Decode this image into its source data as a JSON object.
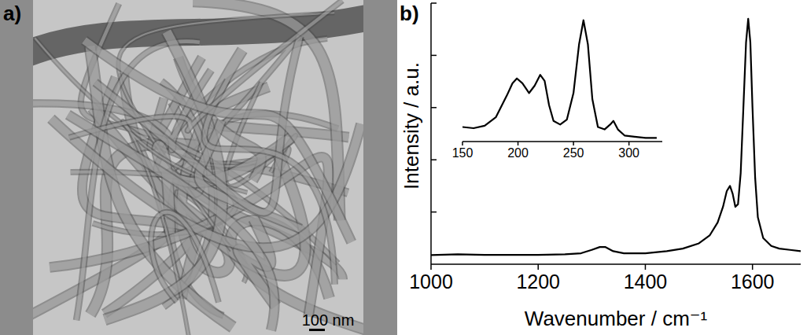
{
  "panels": {
    "a": "a)",
    "b": "b)"
  },
  "image": {
    "scale_bar": "100 nm"
  },
  "chart_data": [
    {
      "type": "line",
      "x_label": "Wavenumber / cm⁻¹",
      "y_label": "Intensity / a.u.",
      "x": [
        1000,
        1050,
        1100,
        1150,
        1200,
        1250,
        1280,
        1300,
        1315,
        1325,
        1340,
        1360,
        1400,
        1440,
        1470,
        1500,
        1520,
        1535,
        1545,
        1552,
        1558,
        1563,
        1568,
        1573,
        1578,
        1583,
        1588,
        1592,
        1596,
        1600,
        1605,
        1610,
        1620,
        1635,
        1650,
        1670,
        1690
      ],
      "values": [
        0.035,
        0.038,
        0.036,
        0.036,
        0.036,
        0.038,
        0.042,
        0.055,
        0.066,
        0.066,
        0.05,
        0.042,
        0.042,
        0.05,
        0.06,
        0.08,
        0.11,
        0.16,
        0.22,
        0.28,
        0.3,
        0.27,
        0.22,
        0.23,
        0.35,
        0.6,
        0.85,
        0.94,
        0.85,
        0.6,
        0.33,
        0.18,
        0.1,
        0.07,
        0.06,
        0.055,
        0.05
      ],
      "color": "#000000",
      "xlim": [
        1000,
        1690
      ],
      "xticks": [
        1000,
        1200,
        1400,
        1600
      ],
      "ylim": [
        0,
        1
      ],
      "yticks": [
        0.2,
        0.4,
        0.6,
        0.8,
        1
      ],
      "tick_labels": "x"
    },
    {
      "type": "line",
      "x": [
        150,
        160,
        170,
        180,
        190,
        195,
        199,
        204,
        210,
        215,
        220,
        224,
        228,
        232,
        238,
        244,
        250,
        255,
        259,
        263,
        267,
        272,
        278,
        283,
        286,
        290,
        296,
        305,
        315,
        325
      ],
      "values": [
        0.12,
        0.11,
        0.13,
        0.2,
        0.38,
        0.48,
        0.52,
        0.48,
        0.4,
        0.46,
        0.55,
        0.5,
        0.3,
        0.17,
        0.14,
        0.18,
        0.4,
        0.8,
        1.0,
        0.8,
        0.35,
        0.12,
        0.1,
        0.14,
        0.17,
        0.1,
        0.05,
        0.04,
        0.03,
        0.03
      ],
      "color": "#000000",
      "xlim": [
        150,
        330
      ],
      "xticks": [
        150,
        200,
        250,
        300
      ],
      "ylim": [
        0,
        1.05
      ],
      "tick_labels": "x"
    }
  ]
}
